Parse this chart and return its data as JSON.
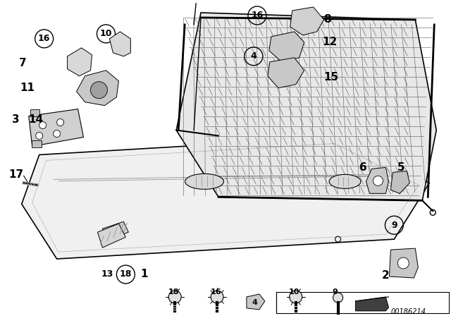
{
  "bg_color": "#ffffff",
  "line_color": "#000000",
  "text_color": "#000000",
  "diagram_id": "00186214",
  "font_size": 9
}
